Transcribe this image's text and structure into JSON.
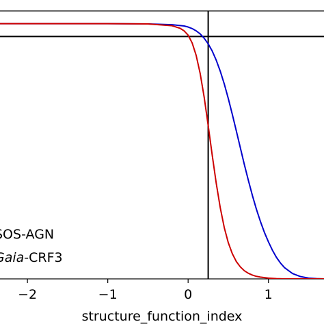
{
  "chart_data": {
    "type": "line",
    "title": "",
    "xlabel": "structure_function_index",
    "ylabel": "",
    "xlim": [
      -2.35,
      1.7
    ],
    "ylim": [
      0,
      1.05
    ],
    "xticks": [
      -2,
      -1,
      0,
      1
    ],
    "xtick_labels": [
      "−2",
      "−1",
      "0",
      "1"
    ],
    "grid": false,
    "legend_placement": "lower-left",
    "series": [
      {
        "name_parts": [
          "SOS",
          "-",
          "AGN"
        ],
        "color": "#0000cc",
        "x": [
          -2.35,
          -1.5,
          -1.0,
          -0.5,
          -0.2,
          -0.05,
          0.0,
          0.05,
          0.1,
          0.15,
          0.2,
          0.25,
          0.3,
          0.35,
          0.4,
          0.45,
          0.5,
          0.55,
          0.6,
          0.65,
          0.7,
          0.75,
          0.8,
          0.85,
          0.9,
          0.95,
          1.0,
          1.05,
          1.1,
          1.15,
          1.2,
          1.3,
          1.4,
          1.5,
          1.6,
          1.7
        ],
        "y": [
          1.0,
          1.0,
          1.0,
          0.999,
          0.996,
          0.991,
          0.987,
          0.981,
          0.972,
          0.96,
          0.943,
          0.921,
          0.893,
          0.857,
          0.814,
          0.764,
          0.707,
          0.645,
          0.58,
          0.514,
          0.448,
          0.386,
          0.327,
          0.273,
          0.225,
          0.182,
          0.145,
          0.112,
          0.084,
          0.062,
          0.044,
          0.021,
          0.009,
          0.003,
          0.001,
          0.0
        ]
      },
      {
        "name_parts": [
          "Gaia",
          "-",
          "CRF3"
        ],
        "color": "#cc0000",
        "x": [
          -2.35,
          -1.5,
          -1.0,
          -0.5,
          -0.2,
          -0.1,
          -0.05,
          0.0,
          0.05,
          0.1,
          0.15,
          0.2,
          0.25,
          0.3,
          0.35,
          0.4,
          0.45,
          0.5,
          0.55,
          0.6,
          0.65,
          0.7,
          0.75,
          0.8,
          0.85,
          0.9,
          0.95,
          1.0,
          1.1,
          1.2,
          1.3,
          1.4,
          1.5,
          1.7
        ],
        "y": [
          1.0,
          1.0,
          1.0,
          0.999,
          0.992,
          0.982,
          0.972,
          0.955,
          0.925,
          0.876,
          0.805,
          0.712,
          0.601,
          0.485,
          0.375,
          0.279,
          0.201,
          0.142,
          0.099,
          0.068,
          0.047,
          0.032,
          0.022,
          0.015,
          0.01,
          0.007,
          0.005,
          0.003,
          0.001,
          0.0,
          0.0,
          0.0,
          0.0,
          0.0
        ]
      }
    ],
    "reference_lines": {
      "vertical_x": 0.25,
      "horizontal_y": 0.95,
      "color": "#000000"
    }
  }
}
